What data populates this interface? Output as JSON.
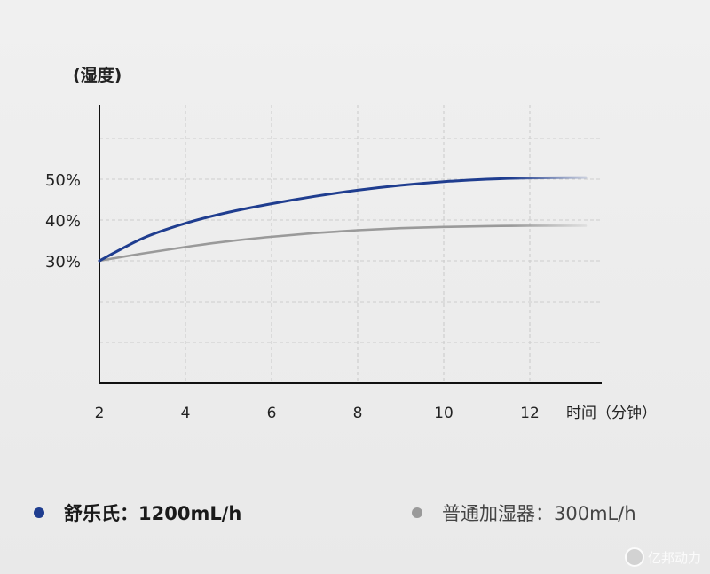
{
  "chart_data": {
    "type": "line",
    "ylabel": "(湿度)",
    "xlabel": "时间（分钟）",
    "x_ticks": [
      2,
      4,
      6,
      8,
      10,
      12
    ],
    "xlim": [
      2,
      13.3
    ],
    "y_ticks": [
      {
        "value": 30,
        "label": "30%"
      },
      {
        "value": 40,
        "label": "40%"
      },
      {
        "value": 50,
        "label": "50%"
      }
    ],
    "ylim": [
      0,
      70
    ],
    "grid": true,
    "series": [
      {
        "name": "舒乐氏：1200mL/h",
        "color": "#1f3d8f",
        "x": [
          2,
          3,
          4,
          5,
          6,
          7,
          8,
          9,
          10,
          11,
          12,
          13.3
        ],
        "y": [
          30,
          35.5,
          39.2,
          41.9,
          44.0,
          45.8,
          47.3,
          48.5,
          49.4,
          50.0,
          50.3,
          50.4
        ]
      },
      {
        "name": "普通加湿器：300mL/h",
        "color": "#9a9a9a",
        "x": [
          2,
          3,
          4,
          5,
          6,
          7,
          8,
          9,
          10,
          11,
          12,
          13.3
        ],
        "y": [
          30,
          31.8,
          33.4,
          34.8,
          35.9,
          36.8,
          37.5,
          38.0,
          38.3,
          38.5,
          38.6,
          38.6
        ]
      }
    ]
  },
  "legend": {
    "primary_label": "舒乐氏：1200mL/h",
    "secondary_label": "普通加湿器：300mL/h"
  },
  "watermark": {
    "text": "亿邦动力"
  }
}
